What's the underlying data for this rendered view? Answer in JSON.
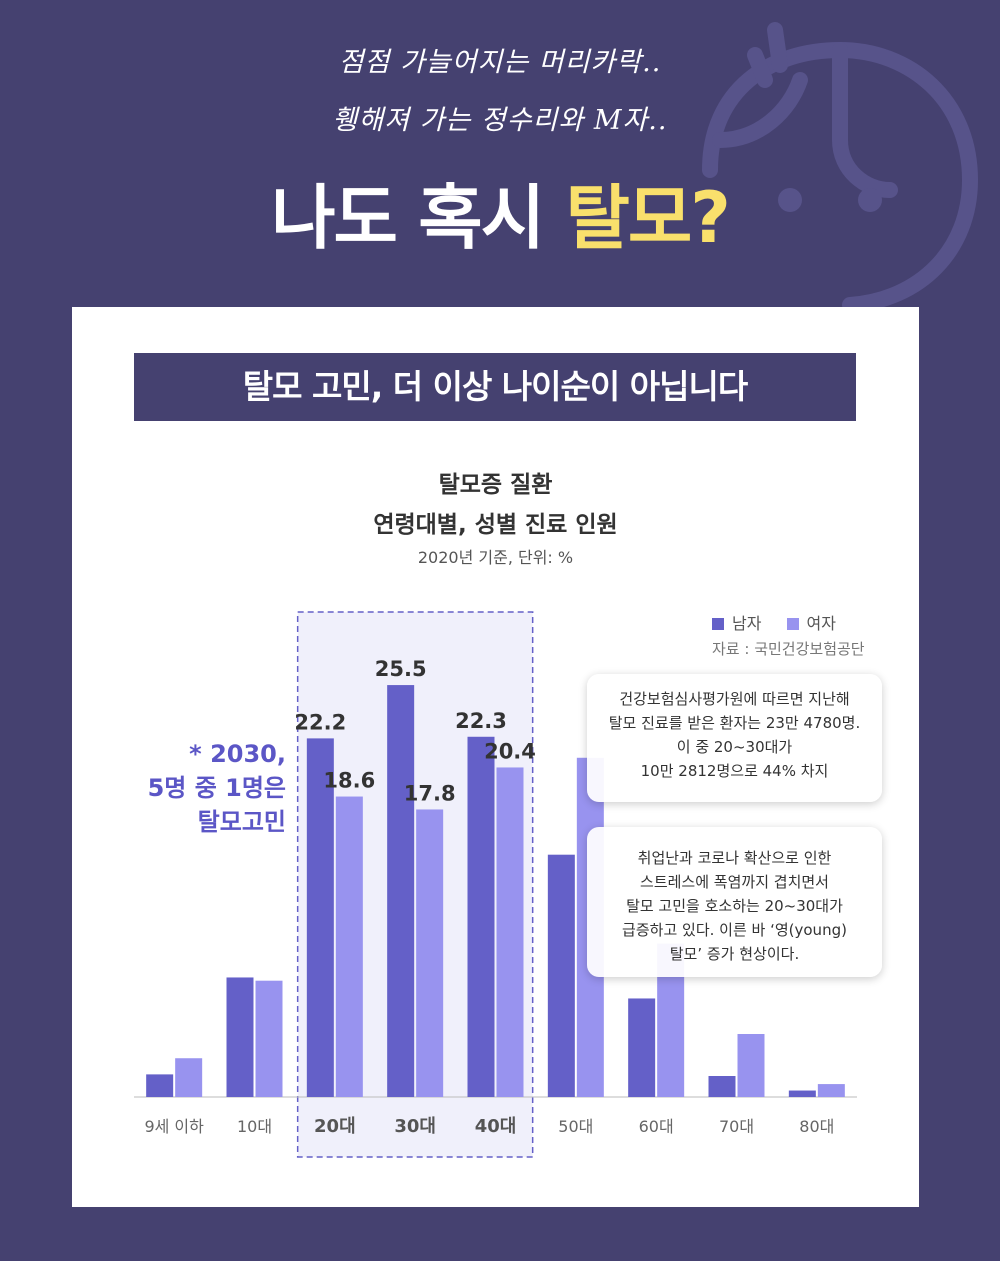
{
  "header": {
    "line1": "점점 가늘어지는 머리카락..",
    "line2": "휑해져 가는 정수리와 M자..",
    "title_main": "나도 혹시 ",
    "title_highlight": "탈모?",
    "highlight_color": "#f9e06c",
    "background_color": "#454170"
  },
  "banner": "탈모 고민, 더 이상 나이순이 아닙니다",
  "note": {
    "line1": "* 2030,",
    "line2": "5명 중 1명은",
    "line3": "탈모고민"
  },
  "info_box_1": {
    "lines": [
      "건강보험심사평가원에 따르면 지난해",
      "탈모 진료를 받은 환자는 23만 4780명.",
      "이 중 20~30대가",
      "10만 2812명으로 44% 차지"
    ]
  },
  "info_box_2": {
    "lines": [
      "취업난과 코로나 확산으로 인한",
      "스트레스에 폭염까지 겹치면서",
      "탈모 고민을 호소하는 20~30대가",
      "급증하고 있다. 이른 바 ‘영(young)",
      "탈모’ 증가 현상이다."
    ]
  },
  "chart_data": {
    "type": "bar",
    "title": "탈모증 질환",
    "subtitle": "연령대별, 성별 진료 인원",
    "caption": "2020년 기준, 단위: %",
    "source": "자료 : 국민건강보험공단",
    "categories": [
      "9세 이하",
      "10대",
      "20대",
      "30대",
      "40대",
      "50대",
      "60대",
      "70대",
      "80대"
    ],
    "highlighted_categories": [
      "20대",
      "30대",
      "40대"
    ],
    "series": [
      {
        "name": "남자",
        "color": "#6460c8",
        "values": [
          1.4,
          7.4,
          22.2,
          25.5,
          22.3,
          15.0,
          6.1,
          1.3,
          0.4
        ],
        "labeled": [
          false,
          false,
          true,
          true,
          true,
          false,
          false,
          false,
          false
        ]
      },
      {
        "name": "여자",
        "color": "#9893ef",
        "values": [
          2.4,
          7.2,
          18.6,
          17.8,
          20.4,
          21.0,
          9.5,
          3.9,
          0.8
        ],
        "labeled": [
          false,
          false,
          true,
          true,
          true,
          false,
          false,
          false,
          false
        ]
      }
    ],
    "ylim": [
      0,
      26
    ],
    "grid": false,
    "legend_position": "top-right"
  }
}
